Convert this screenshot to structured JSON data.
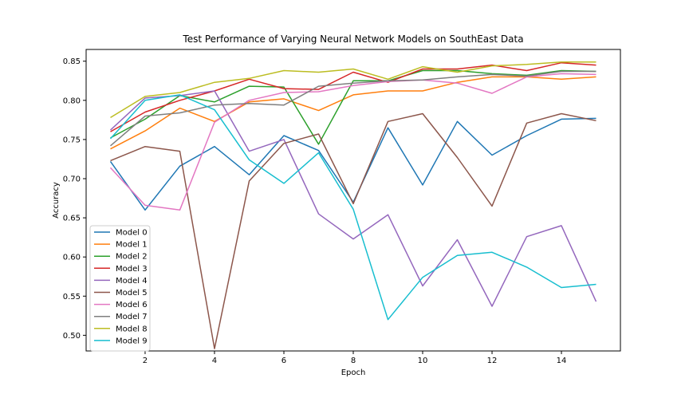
{
  "chart_data": {
    "type": "line",
    "title": "Test Performance of Varying Neural Network Models on SouthEast Data",
    "xlabel": "Epoch",
    "ylabel": "Accuracy",
    "xlim": [
      0.3,
      15.7
    ],
    "ylim": [
      0.48,
      0.865
    ],
    "xticks": [
      2,
      4,
      6,
      8,
      10,
      12,
      14
    ],
    "yticks": [
      0.5,
      0.55,
      0.6,
      0.65,
      0.7,
      0.75,
      0.8,
      0.85
    ],
    "ytick_labels": [
      "0.50",
      "0.55",
      "0.60",
      "0.65",
      "0.70",
      "0.75",
      "0.80",
      "0.85"
    ],
    "legend_position": "lower-left",
    "x": [
      1,
      2,
      3,
      4,
      5,
      6,
      7,
      8,
      9,
      10,
      11,
      12,
      13,
      14,
      15
    ],
    "series": [
      {
        "name": "Model 0",
        "color": "#1f77b4",
        "values": [
          0.722,
          0.66,
          0.716,
          0.741,
          0.705,
          0.755,
          0.736,
          0.67,
          0.765,
          0.692,
          0.773,
          0.73,
          0.755,
          0.776,
          0.777
        ]
      },
      {
        "name": "Model 1",
        "color": "#ff7f0e",
        "values": [
          0.738,
          0.761,
          0.79,
          0.773,
          0.798,
          0.802,
          0.787,
          0.807,
          0.812,
          0.812,
          0.823,
          0.83,
          0.83,
          0.827,
          0.83
        ]
      },
      {
        "name": "Model 2",
        "color": "#2ca02c",
        "values": [
          0.752,
          0.776,
          0.806,
          0.798,
          0.818,
          0.817,
          0.744,
          0.825,
          0.825,
          0.838,
          0.838,
          0.834,
          0.832,
          0.838,
          0.837
        ]
      },
      {
        "name": "Model 3",
        "color": "#d62728",
        "values": [
          0.76,
          0.785,
          0.8,
          0.812,
          0.827,
          0.815,
          0.814,
          0.836,
          0.823,
          0.84,
          0.84,
          0.845,
          0.838,
          0.848,
          0.845
        ]
      },
      {
        "name": "Model 4",
        "color": "#9467bd",
        "values": [
          0.762,
          0.803,
          0.806,
          0.812,
          0.735,
          0.75,
          0.655,
          0.623,
          0.654,
          0.563,
          0.622,
          0.537,
          0.626,
          0.64,
          0.543
        ]
      },
      {
        "name": "Model 5",
        "color": "#8c564b",
        "values": [
          0.723,
          0.741,
          0.735,
          0.483,
          0.697,
          0.745,
          0.757,
          0.668,
          0.773,
          0.783,
          0.727,
          0.665,
          0.771,
          0.783,
          0.774
        ]
      },
      {
        "name": "Model 6",
        "color": "#e377c2",
        "values": [
          0.714,
          0.666,
          0.66,
          0.772,
          0.8,
          0.81,
          0.811,
          0.819,
          0.824,
          0.826,
          0.822,
          0.809,
          0.83,
          0.834,
          0.833
        ]
      },
      {
        "name": "Model 7",
        "color": "#7f7f7f",
        "values": [
          0.742,
          0.78,
          0.784,
          0.794,
          0.796,
          0.794,
          0.818,
          0.822,
          0.825,
          0.826,
          0.83,
          0.833,
          0.831,
          0.837,
          0.837
        ]
      },
      {
        "name": "Model 8",
        "color": "#bcbd22",
        "values": [
          0.778,
          0.805,
          0.81,
          0.823,
          0.828,
          0.838,
          0.836,
          0.84,
          0.827,
          0.843,
          0.836,
          0.844,
          0.846,
          0.849,
          0.849
        ]
      },
      {
        "name": "Model 9",
        "color": "#17becf",
        "values": [
          0.751,
          0.8,
          0.807,
          0.788,
          0.724,
          0.694,
          0.733,
          0.661,
          0.52,
          0.574,
          0.602,
          0.606,
          0.587,
          0.561,
          0.565
        ]
      }
    ]
  }
}
